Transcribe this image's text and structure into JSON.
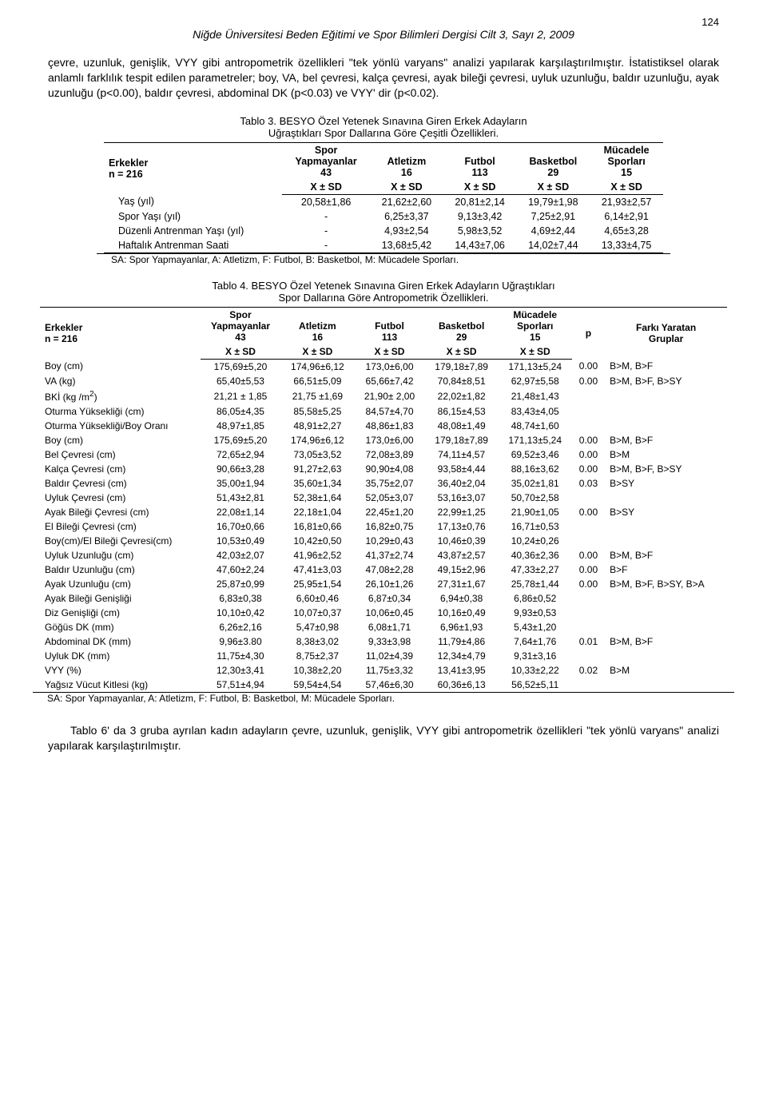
{
  "page_number": "124",
  "journal_header": "Niğde Üniversitesi Beden Eğitimi ve Spor Bilimleri Dergisi Cilt 3, Sayı 2, 2009",
  "paragraph_top": "çevre, uzunluk, genişlik, VYY gibi antropometrik özellikleri \"tek yönlü varyans\" analizi yapılarak karşılaştırılmıştır. İstatistiksel olarak anlamlı farklılık tespit edilen parametreler; boy, VA, bel çevresi, kalça çevresi, ayak bileği çevresi, uyluk uzunluğu, baldır uzunluğu, ayak uzunluğu (p<0.00), baldır çevresi, abdominal DK (p<0.03) ve VYY' dir (p<0.02).",
  "table3": {
    "caption_l1": "Tablo 3. BESYO Özel Yetenek Sınavına Giren Erkek Adayların",
    "caption_l2": "Uğraştıkları Spor Dallarına Göre Çeşitli Özellikleri.",
    "head_group": {
      "label": "Erkekler\nn = 216",
      "c1_l1": "Spor",
      "c1_l2": "Yapmayanlar",
      "c1_l3": "43",
      "c2_l1": "Atletizm",
      "c2_l2": "16",
      "c3_l1": "Futbol",
      "c3_l2": "113",
      "c4_l1": "Basketbol",
      "c4_l2": "29",
      "c5_l1": "Mücadele",
      "c5_l2": "Sporları",
      "c5_l3": "15",
      "xsd": "X ± SD"
    },
    "rows": [
      {
        "label": "Yaş (yıl)",
        "c1": "20,58±1,86",
        "c2": "21,62±2,60",
        "c3": "20,81±2,14",
        "c4": "19,79±1,98",
        "c5": "21,93±2,57"
      },
      {
        "label": "Spor Yaşı (yıl)",
        "c1": "-",
        "c2": "6,25±3,37",
        "c3": "9,13±3,42",
        "c4": "7,25±2,91",
        "c5": "6,14±2,91"
      },
      {
        "label": "Düzenli Antrenman Yaşı (yıl)",
        "c1": "-",
        "c2": "4,93±2,54",
        "c3": "5,98±3,52",
        "c4": "4,69±2,44",
        "c5": "4,65±3,28"
      },
      {
        "label": "Haftalık Antrenman Saati",
        "c1": "-",
        "c2": "13,68±5,42",
        "c3": "14,43±7,06",
        "c4": "14,02±7,44",
        "c5": "13,33±4,75"
      }
    ],
    "note": "SA: Spor Yapmayanlar,  A: Atletizm,  F: Futbol,  B: Basketbol,  M: Mücadele Sporları."
  },
  "table4": {
    "caption_l1": "Tablo 4. BESYO Özel Yetenek Sınavına Giren Erkek Adayların Uğraştıkları",
    "caption_l2": "Spor Dallarına Göre Antropometrik Özellikleri.",
    "head": {
      "group_label": "Erkekler\nn = 216",
      "c1_l1": "Spor",
      "c1_l2": "Yapmayanlar",
      "c1_l3": "43",
      "c2_l1": "Atletizm",
      "c2_l2": "16",
      "c3_l1": "Futbol",
      "c3_l2": "113",
      "c4_l1": "Basketbol",
      "c4_l2": "29",
      "c5_l1": "Mücadele",
      "c5_l2": "Sporları",
      "c5_l3": "15",
      "p": "p",
      "diff_l1": "Farkı Yaratan",
      "diff_l2": "Gruplar",
      "xsd": "X  ± SD"
    },
    "rows": [
      {
        "label": "Boy  (cm)",
        "c1": "175,69±5,20",
        "c2": "174,96±6,12",
        "c3": "173,0±6,00",
        "c4": "179,18±7,89",
        "c5": "171,13±5,24",
        "p": "0.00",
        "g": "B>M,  B>F"
      },
      {
        "label": "VA  (kg)",
        "c1": "65,40±5,53",
        "c2": "66,51±5,09",
        "c3": "65,66±7,42",
        "c4": "70,84±8,51",
        "c5": "62,97±5,58",
        "p": "0.00",
        "g": "B>M,  B>F,  B>SY"
      },
      {
        "label": "BKİ (kg /m",
        "label_sup": "2",
        "label_suffix": ")",
        "c1": "21,21 ± 1,85",
        "c2": "21,75 ±1,69",
        "c3": "21,90± 2,00",
        "c4": "22,02±1,82",
        "c5": "21,48±1,43",
        "p": "",
        "g": ""
      },
      {
        "label": "Oturma Yüksekliği (cm)",
        "c1": "86,05±4,35",
        "c2": "85,58±5,25",
        "c3": "84,57±4,70",
        "c4": "86,15±4,53",
        "c5": "83,43±4,05",
        "p": "",
        "g": ""
      },
      {
        "label": "Oturma Yüksekliği/Boy Oranı",
        "c1": "48,97±1,85",
        "c2": "48,91±2,27",
        "c3": "48,86±1,83",
        "c4": "48,08±1,49",
        "c5": "48,74±1,60",
        "p": "",
        "g": ""
      },
      {
        "label": "Boy  (cm)",
        "c1": "175,69±5,20",
        "c2": "174,96±6,12",
        "c3": "173,0±6,00",
        "c4": "179,18±7,89",
        "c5": "171,13±5,24",
        "p": "0.00",
        "g": "B>M,  B>F"
      },
      {
        "label": "Bel Çevresi (cm)",
        "c1": "72,65±2,94",
        "c2": "73,05±3,52",
        "c3": "72,08±3,89",
        "c4": "74,11±4,57",
        "c5": "69,52±3,46",
        "p": "0.00",
        "g": "B>M"
      },
      {
        "label": "Kalça Çevresi (cm)",
        "c1": "90,66±3,28",
        "c2": "91,27±2,63",
        "c3": "90,90±4,08",
        "c4": "93,58±4,44",
        "c5": "88,16±3,62",
        "p": "0.00",
        "g": "B>M,  B>F,  B>SY"
      },
      {
        "label": "Baldır Çevresi (cm)",
        "c1": "35,00±1,94",
        "c2": "35,60±1,34",
        "c3": "35,75±2,07",
        "c4": "36,40±2,04",
        "c5": "35,02±1,81",
        "p": "0.03",
        "g": "B>SY"
      },
      {
        "label": "Uyluk Çevresi (cm)",
        "c1": "51,43±2,81",
        "c2": "52,38±1,64",
        "c3": "52,05±3,07",
        "c4": "53,16±3,07",
        "c5": "50,70±2,58",
        "p": "",
        "g": ""
      },
      {
        "label": "Ayak Bileği Çevresi (cm)",
        "c1": "22,08±1,14",
        "c2": "22,18±1,04",
        "c3": "22,45±1,20",
        "c4": "22,99±1,25",
        "c5": "21,90±1,05",
        "p": "0.00",
        "g": "B>SY"
      },
      {
        "label": "El Bileği Çevresi (cm)",
        "c1": "16,70±0,66",
        "c2": "16,81±0,66",
        "c3": "16,82±0,75",
        "c4": "17,13±0,76",
        "c5": "16,71±0,53",
        "p": "",
        "g": ""
      },
      {
        "label": "Boy(cm)/El Bileği Çevresi(cm)",
        "c1": "10,53±0,49",
        "c2": "10,42±0,50",
        "c3": "10,29±0,43",
        "c4": "10,46±0,39",
        "c5": "10,24±0,26",
        "p": "",
        "g": ""
      },
      {
        "label": "Uyluk Uzunluğu (cm)",
        "c1": "42,03±2,07",
        "c2": "41,96±2,52",
        "c3": "41,37±2,74",
        "c4": "43,87±2,57",
        "c5": "40,36±2,36",
        "p": "0.00",
        "g": "B>M,  B>F"
      },
      {
        "label": "Baldır Uzunluğu (cm)",
        "c1": "47,60±2,24",
        "c2": "47,41±3,03",
        "c3": "47,08±2,28",
        "c4": "49,15±2,96",
        "c5": "47,33±2,27",
        "p": "0.00",
        "g": "B>F"
      },
      {
        "label": "Ayak  Uzunluğu (cm)",
        "c1": "25,87±0,99",
        "c2": "25,95±1,54",
        "c3": "26,10±1,26",
        "c4": "27,31±1,67",
        "c5": "25,78±1,44",
        "p": "0.00",
        "g": "B>M,  B>F, B>SY, B>A"
      },
      {
        "label": "Ayak Bileği  Genişliği",
        "c1": "6,83±0,38",
        "c2": "6,60±0,46",
        "c3": "6,87±0,34",
        "c4": "6,94±0,38",
        "c5": "6,86±0,52",
        "p": "",
        "g": ""
      },
      {
        "label": "Diz Genişliği (cm)",
        "c1": "10,10±0,42",
        "c2": "10,07±0,37",
        "c3": "10,06±0,45",
        "c4": "10,16±0,49",
        "c5": "9,93±0,53",
        "p": "",
        "g": ""
      },
      {
        "label": "Göğüs DK (mm)",
        "c1": "6,26±2,16",
        "c2": "5,47±0,98",
        "c3": "6,08±1,71",
        "c4": "6,96±1,93",
        "c5": "5,43±1,20",
        "p": "",
        "g": ""
      },
      {
        "label": "Abdominal DK (mm)",
        "c1": "9,96±3.80",
        "c2": "8,38±3,02",
        "c3": "9,33±3,98",
        "c4": "11,79±4,86",
        "c5": "7,64±1,76",
        "p": "0.01",
        "g": "B>M,  B>F"
      },
      {
        "label": "Uyluk DK (mm)",
        "c1": "11,75±4,30",
        "c2": "8,75±2,37",
        "c3": "11,02±4,39",
        "c4": "12,34±4,79",
        "c5": "9,31±3,16",
        "p": "",
        "g": ""
      },
      {
        "label": "VYY  (%)",
        "c1": "12,30±3,41",
        "c2": "10,38±2,20",
        "c3": "11,75±3,32",
        "c4": "13,41±3,95",
        "c5": "10,33±2,22",
        "p": "0.02",
        "g": "B>M"
      },
      {
        "label": "Yağsız Vücut Kitlesi (kg)",
        "c1": "57,51±4,94",
        "c2": "59,54±4,54",
        "c3": "57,46±6,30",
        "c4": "60,36±6,13",
        "c5": "56,52±5,11",
        "p": "",
        "g": ""
      }
    ],
    "note": "SA: Spor Yapmayanlar,  A: Atletizm,  F: Futbol,  B: Basketbol,  M: Mücadele Sporları."
  },
  "paragraph_bottom": "Tablo 6' da 3 gruba ayrılan kadın adayların çevre, uzunluk, genişlik, VYY gibi antropometrik özellikleri \"tek yönlü varyans\" analizi yapılarak karşılaştırılmıştır."
}
